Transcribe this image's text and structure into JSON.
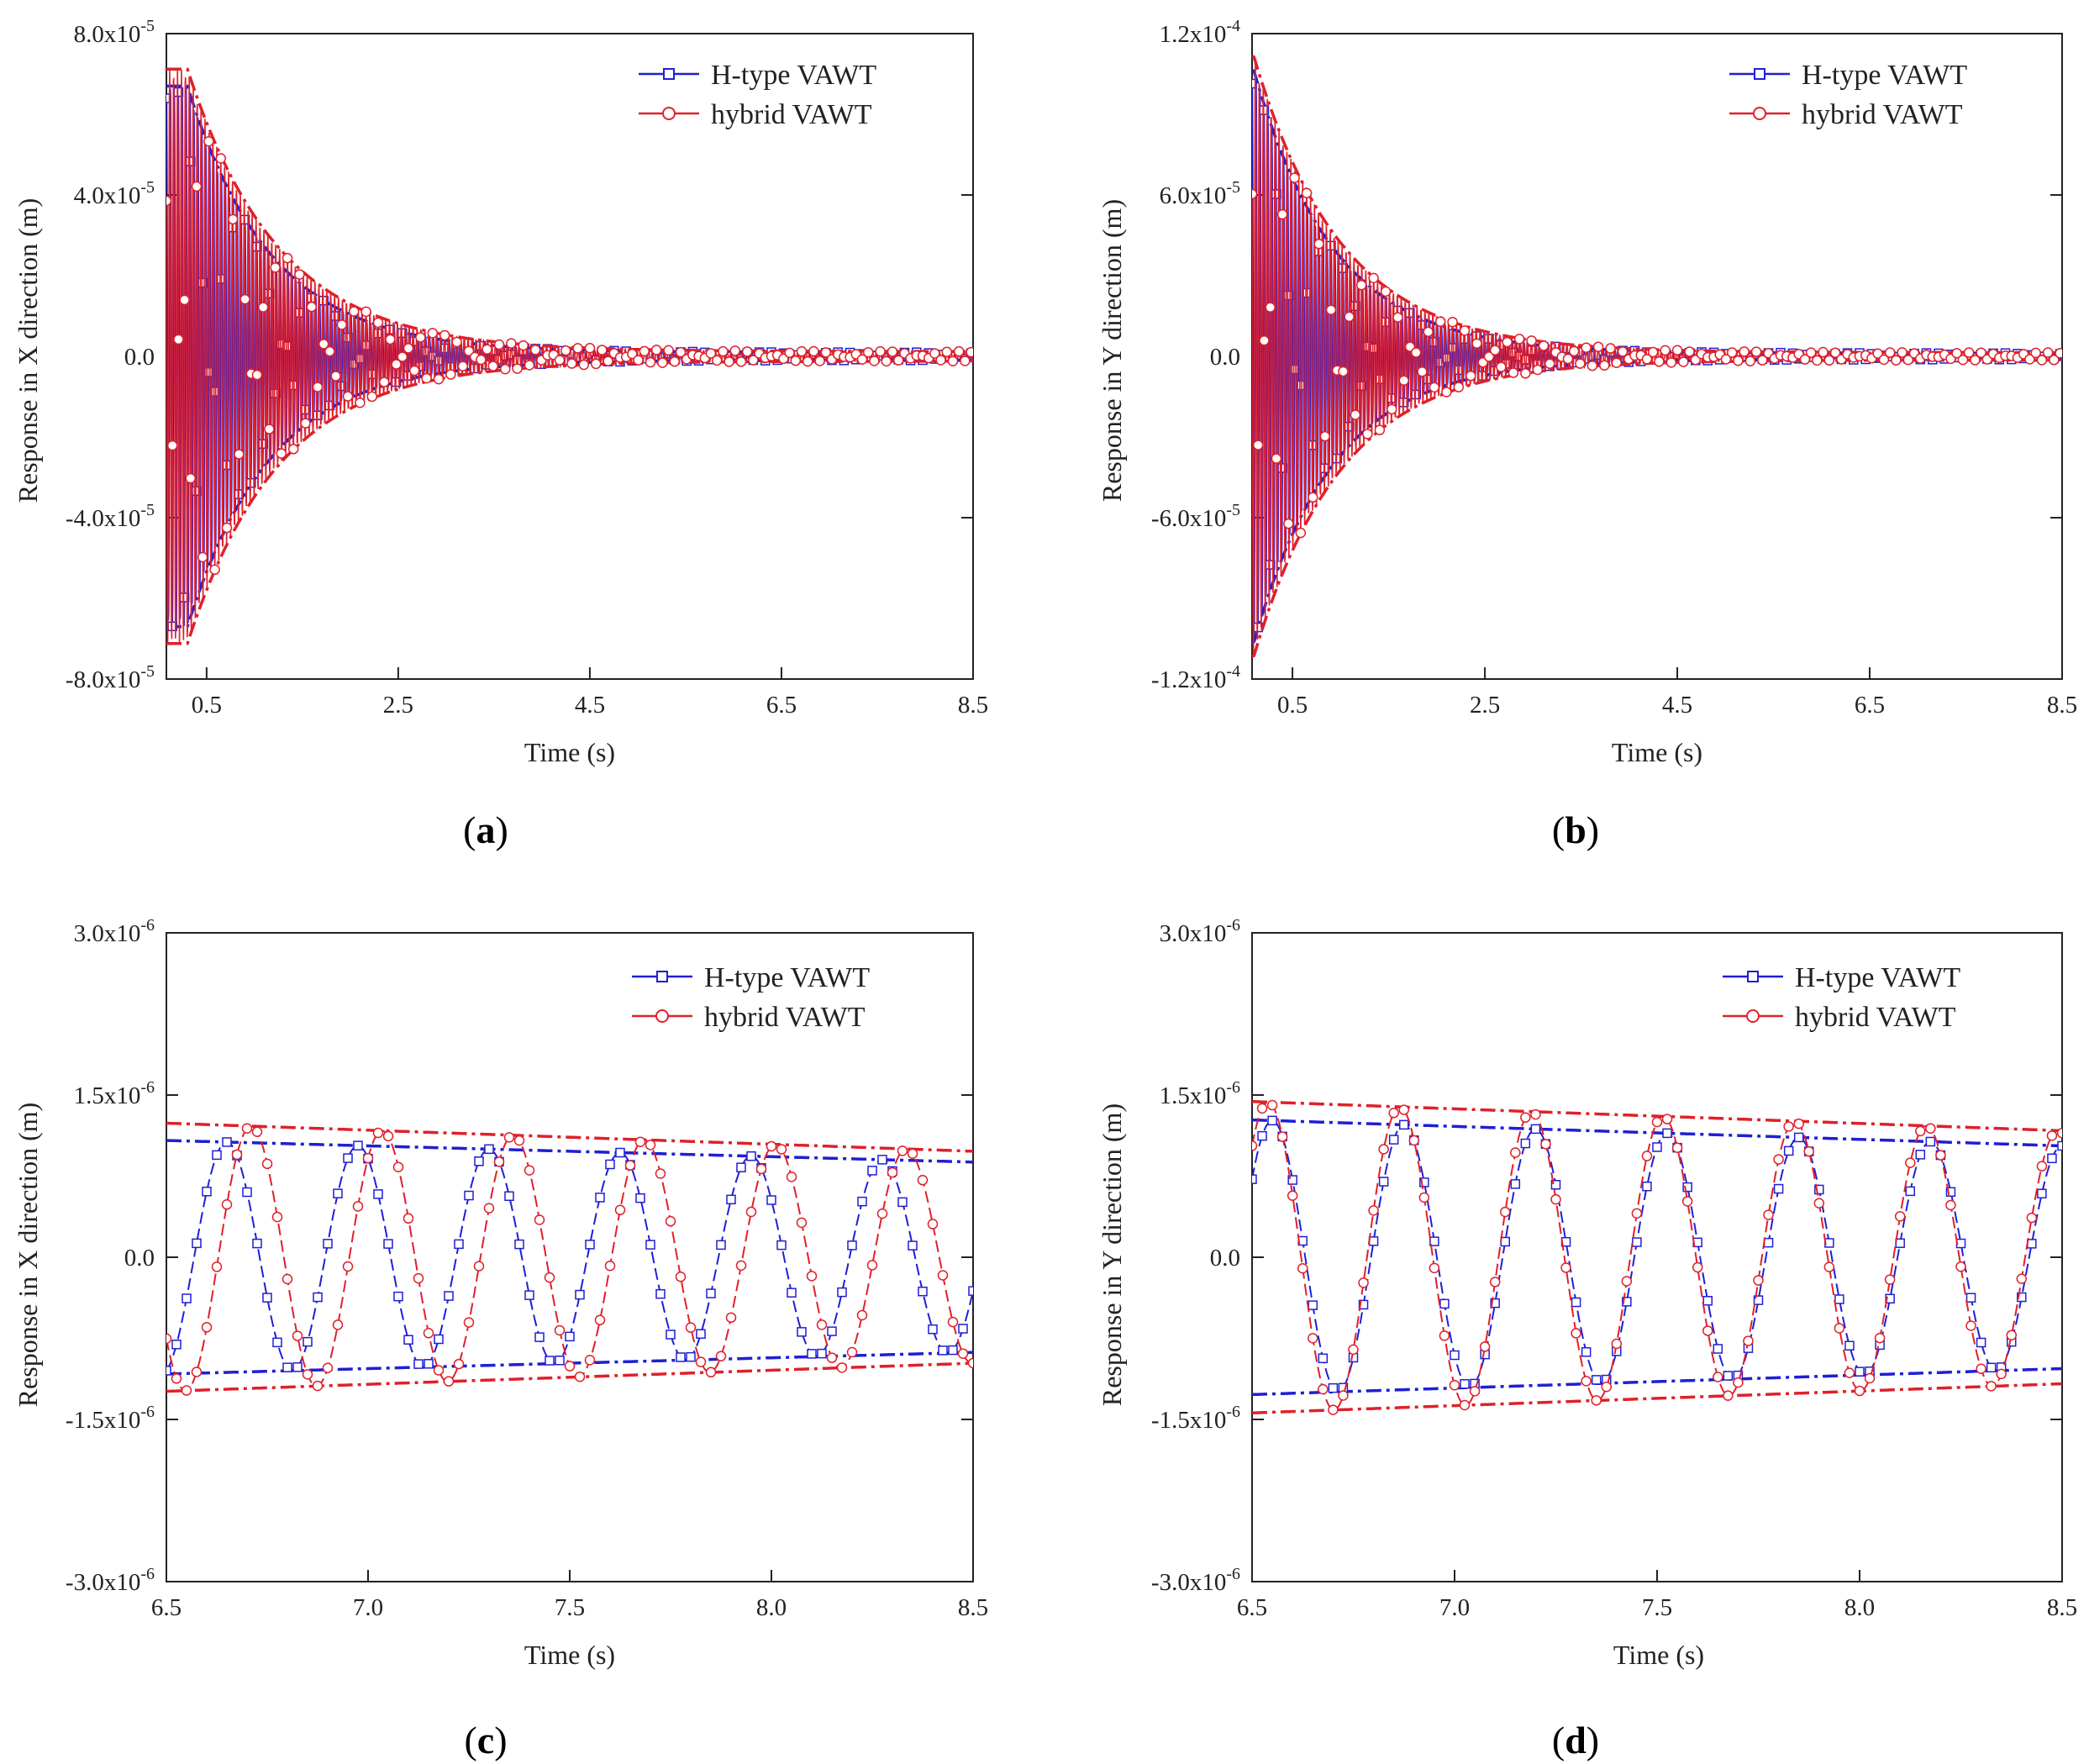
{
  "chart_data": [
    {
      "id": "a",
      "type": "line",
      "panel_label": {
        "open": "(",
        "letter": "a",
        "close": ")"
      },
      "xlabel": "Time (s)",
      "ylabel": "Response in X direction (m)",
      "xlim": [
        0.08,
        8.5
      ],
      "ylim": [
        -8e-05,
        8e-05
      ],
      "xticks": [
        0.5,
        2.5,
        4.5,
        6.5,
        8.5
      ],
      "xtick_labels": [
        "0.5",
        "2.5",
        "4.5",
        "6.5",
        "8.5"
      ],
      "yticks": [
        -8e-05,
        -4e-05,
        0,
        4e-05,
        8e-05
      ],
      "ytick_labels": [
        {
          "mant": "-8.0x10",
          "exp": "-5"
        },
        {
          "mant": "-4.0x10",
          "exp": "-5"
        },
        {
          "mant": "0.0",
          "exp": ""
        },
        {
          "mant": "4.0x10",
          "exp": "-5"
        },
        {
          "mant": "8.0x10",
          "exp": "-5"
        }
      ],
      "legend": {
        "position": "top-right"
      },
      "series": [
        {
          "name": "H-type VAWT",
          "color": "#1f1fd6",
          "marker": "square",
          "amp0": 6.6e-05,
          "freq": 3.05,
          "decay": 1.15,
          "floor": 1e-06,
          "phase": 0.0,
          "peak_t": 0.3
        },
        {
          "name": "hybrid VAWT",
          "color": "#e0202a",
          "marker": "circle",
          "amp0": 7e-05,
          "freq": 3.05,
          "decay": 1.05,
          "floor": 1.2e-06,
          "phase": 1.3,
          "peak_t": 0.3
        }
      ]
    },
    {
      "id": "b",
      "type": "line",
      "panel_label": {
        "open": "(",
        "letter": "b",
        "close": ")"
      },
      "xlabel": "Time (s)",
      "ylabel": "Response in Y direction (m)",
      "xlim": [
        0.08,
        8.5
      ],
      "ylim": [
        -0.00012,
        0.00012
      ],
      "xticks": [
        0.5,
        2.5,
        4.5,
        6.5,
        8.5
      ],
      "xtick_labels": [
        "0.5",
        "2.5",
        "4.5",
        "6.5",
        "8.5"
      ],
      "yticks": [
        -0.00012,
        -6e-05,
        0,
        6e-05,
        0.00012
      ],
      "ytick_labels": [
        {
          "mant": "-1.2x10",
          "exp": "-4"
        },
        {
          "mant": "-6.0x10",
          "exp": "-5"
        },
        {
          "mant": "0.0",
          "exp": ""
        },
        {
          "mant": "6.0x10",
          "exp": "-5"
        },
        {
          "mant": "1.2x10",
          "exp": "-4"
        }
      ],
      "legend": {
        "position": "top-right"
      },
      "series": [
        {
          "name": "H-type VAWT",
          "color": "#1f1fd6",
          "marker": "square",
          "amp0": 0.000105,
          "freq": 3.05,
          "decay": 1.2,
          "floor": 1.2e-06,
          "phase": 0.0,
          "peak_t": 0.1
        },
        {
          "name": "hybrid VAWT",
          "color": "#e0202a",
          "marker": "circle",
          "amp0": 0.00011,
          "freq": 3.05,
          "decay": 1.1,
          "floor": 1.4e-06,
          "phase": 1.3,
          "peak_t": 0.1
        }
      ]
    },
    {
      "id": "c",
      "type": "line",
      "panel_label": {
        "open": "(",
        "letter": "c",
        "close": ")"
      },
      "xlabel": "Time (s)",
      "ylabel": "Response in X direction (m)",
      "xlim": [
        6.5,
        8.5
      ],
      "ylim": [
        -3e-06,
        3e-06
      ],
      "xticks": [
        6.5,
        7.0,
        7.5,
        8.0,
        8.5
      ],
      "xtick_labels": [
        "6.5",
        "7.0",
        "7.5",
        "8.0",
        "8.5"
      ],
      "yticks": [
        -3e-06,
        -1.5e-06,
        0,
        1.5e-06,
        3e-06
      ],
      "ytick_labels": [
        {
          "mant": "-3.0x10",
          "exp": "-6"
        },
        {
          "mant": "-1.5x10",
          "exp": "-6"
        },
        {
          "mant": "0.0",
          "exp": ""
        },
        {
          "mant": "1.5x10",
          "exp": "-6"
        },
        {
          "mant": "3.0x10",
          "exp": "-6"
        }
      ],
      "legend": {
        "position": "top-right"
      },
      "series": [
        {
          "name": "H-type VAWT",
          "color": "#1f1fd6",
          "marker": "square",
          "amp_start": 1.08e-06,
          "amp_end": 8.8e-07,
          "period": 0.325,
          "peak_t": 6.65
        },
        {
          "name": "hybrid VAWT",
          "color": "#e0202a",
          "marker": "circle",
          "amp_start": 1.24e-06,
          "amp_end": 9.8e-07,
          "period": 0.325,
          "peak_t": 6.71
        }
      ]
    },
    {
      "id": "d",
      "type": "line",
      "panel_label": {
        "open": "(",
        "letter": "d",
        "close": ")"
      },
      "xlabel": "Time (s)",
      "ylabel": "Response in Y direction (m)",
      "xlim": [
        6.5,
        8.5
      ],
      "ylim": [
        -3e-06,
        3e-06
      ],
      "xticks": [
        6.5,
        7.0,
        7.5,
        8.0,
        8.5
      ],
      "xtick_labels": [
        "6.5",
        "7.0",
        "7.5",
        "8.0",
        "8.5"
      ],
      "yticks": [
        -3e-06,
        -1.5e-06,
        0,
        1.5e-06,
        3e-06
      ],
      "ytick_labels": [
        {
          "mant": "-3.0x10",
          "exp": "-6"
        },
        {
          "mant": "-1.5x10",
          "exp": "-6"
        },
        {
          "mant": "0.0",
          "exp": ""
        },
        {
          "mant": "1.5x10",
          "exp": "-6"
        },
        {
          "mant": "3.0x10",
          "exp": "-6"
        }
      ],
      "legend": {
        "position": "top-right"
      },
      "series": [
        {
          "name": "H-type VAWT",
          "color": "#1f1fd6",
          "marker": "square",
          "amp_start": 1.27e-06,
          "amp_end": 1.03e-06,
          "period": 0.325,
          "peak_t": 6.55
        },
        {
          "name": "hybrid VAWT",
          "color": "#e0202a",
          "marker": "circle",
          "amp_start": 1.44e-06,
          "amp_end": 1.17e-06,
          "period": 0.325,
          "peak_t": 6.54
        }
      ]
    }
  ]
}
